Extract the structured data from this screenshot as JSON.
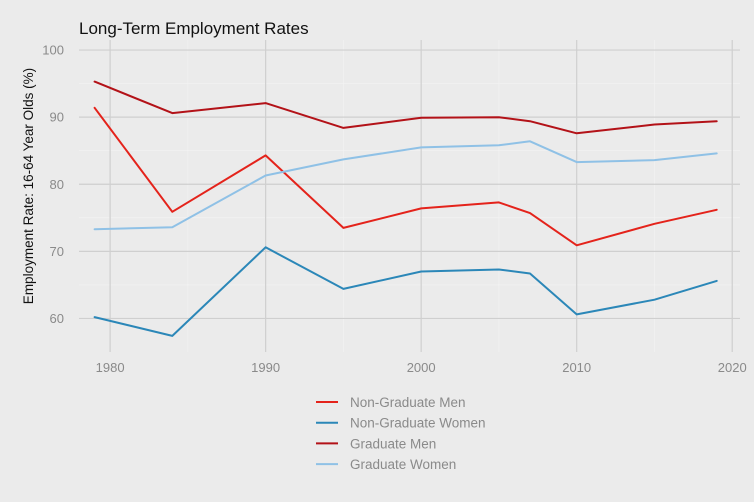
{
  "chart_data": {
    "type": "line",
    "title": "Long-Term Employment Rates",
    "xlabel": "",
    "ylabel": "Employment Rate: 16-64 Year Olds (%)",
    "xlim": [
      1978,
      2020.5
    ],
    "ylim": [
      55,
      101.5
    ],
    "xticks": [
      1980,
      1990,
      2000,
      2010,
      2020
    ],
    "yticks": [
      60,
      70,
      80,
      90,
      100
    ],
    "grid": true,
    "legend_position": "bottom",
    "series": [
      {
        "name": "Non-Graduate Men",
        "color": "#e4231b",
        "x": [
          1979,
          1984,
          1990,
          1995,
          2000,
          2005,
          2007,
          2010,
          2015,
          2019
        ],
        "y": [
          91.4,
          75.9,
          84.3,
          73.5,
          76.4,
          77.3,
          75.7,
          70.9,
          74.1,
          76.2
        ]
      },
      {
        "name": "Non-Graduate Women",
        "color": "#2b87b8",
        "x": [
          1979,
          1984,
          1990,
          1995,
          2000,
          2005,
          2007,
          2010,
          2015,
          2019
        ],
        "y": [
          60.2,
          57.4,
          70.6,
          64.4,
          67.0,
          67.3,
          66.7,
          60.6,
          62.8,
          65.6
        ]
      },
      {
        "name": "Graduate Men",
        "color": "#b31218",
        "x": [
          1979,
          1984,
          1990,
          1995,
          2000,
          2005,
          2007,
          2010,
          2015,
          2019
        ],
        "y": [
          95.3,
          90.6,
          92.1,
          88.4,
          89.9,
          90.0,
          89.4,
          87.6,
          88.9,
          89.4
        ]
      },
      {
        "name": "Graduate Women",
        "color": "#8fc1e6",
        "x": [
          1979,
          1984,
          1990,
          1995,
          2000,
          2005,
          2007,
          2010,
          2015,
          2019
        ],
        "y": [
          73.3,
          73.6,
          81.3,
          83.7,
          85.5,
          85.8,
          86.4,
          83.3,
          83.6,
          84.6
        ]
      }
    ]
  }
}
